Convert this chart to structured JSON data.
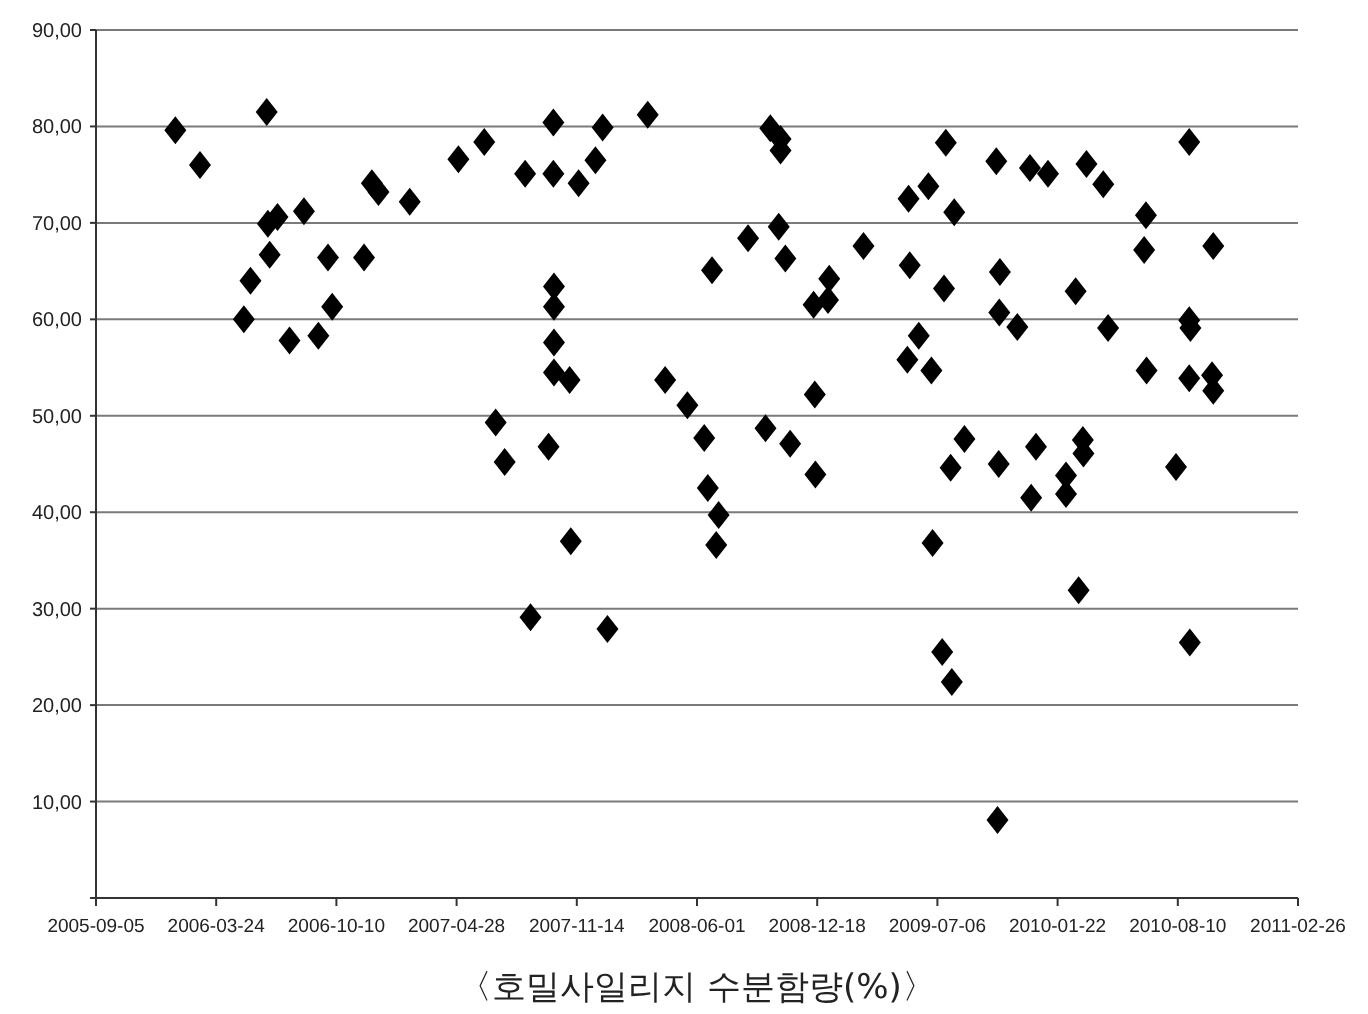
{
  "chart_data": {
    "type": "scatter",
    "xlabel": "〈호밀사일리지 수분함량(%)〉",
    "marker": "diamond",
    "grid": "y",
    "xlim": [
      "2005-09-05",
      "2011-02-26"
    ],
    "xticks": [
      "2005-09-05",
      "2006-03-24",
      "2006-10-10",
      "2007-04-28",
      "2007-11-14",
      "2008-06-01",
      "2008-12-18",
      "2009-07-06",
      "2010-01-22",
      "2010-08-10",
      "2011-02-26"
    ],
    "ylim": [
      0,
      90
    ],
    "yticks": [
      {
        "value": 0,
        "label": null
      },
      {
        "value": 10,
        "label": "10,00"
      },
      {
        "value": 20,
        "label": "20,00"
      },
      {
        "value": 30,
        "label": "30,00"
      },
      {
        "value": 40,
        "label": "40,00"
      },
      {
        "value": 50,
        "label": "50,00"
      },
      {
        "value": 60,
        "label": "60,00"
      },
      {
        "value": 70,
        "label": "70,00"
      },
      {
        "value": 80,
        "label": "80,00"
      },
      {
        "value": 90,
        "label": "90,00"
      }
    ],
    "series": [
      {
        "color": "#000000",
        "x": [
          "2006-01-15",
          "2006-02-25",
          "2006-06-16",
          "2006-06-18",
          "2006-07-04",
          "2006-08-17",
          "2006-06-21",
          "2006-05-20",
          "2006-05-09",
          "2006-07-24",
          "2006-09-10",
          "2006-10-03",
          "2006-09-26",
          "2006-11-25",
          "2006-12-08",
          "2006-12-19",
          "2007-02-09",
          "2007-05-01",
          "2007-06-13",
          "2007-08-20",
          "2007-10-06",
          "2007-10-06",
          "2007-11-17",
          "2007-12-15",
          "2007-12-27",
          "2008-03-11",
          "2008-06-26",
          "2007-10-07",
          "2007-10-07",
          "2007-10-07",
          "2007-10-07",
          "2007-11-02",
          "2008-04-09",
          "2008-05-16",
          "2008-06-13",
          "2007-07-02",
          "2007-07-17",
          "2007-09-28",
          "2008-06-19",
          "2008-07-07",
          "2008-07-03",
          "2007-11-04",
          "2007-08-29",
          "2008-01-04",
          "2008-10-01",
          "2008-10-18",
          "2008-10-18",
          "2008-08-25",
          "2008-10-15",
          "2008-10-26",
          "2009-03-05",
          "2009-01-07",
          "2008-12-12",
          "2009-01-05",
          "2008-12-14",
          "2008-09-23",
          "2008-11-03",
          "2008-12-15",
          "2009-05-19",
          "2009-06-21",
          "2009-07-20",
          "2009-08-03",
          "2009-10-12",
          "2009-05-21",
          "2009-07-17",
          "2009-10-18",
          "2009-10-17",
          "2009-11-16",
          "2009-06-05",
          "2009-05-17",
          "2009-06-26",
          "2009-08-20",
          "2009-07-28",
          "2009-10-16",
          "2009-06-28",
          "2009-07-14",
          "2009-07-30",
          "2009-10-14",
          "2009-12-07",
          "2010-01-06",
          "2010-03-11",
          "2010-04-08",
          "2010-08-29",
          "2010-06-18",
          "2010-06-15",
          "2010-10-08",
          "2010-02-21",
          "2010-04-16",
          "2010-08-29",
          "2010-08-31",
          "2010-06-19",
          "2010-08-29",
          "2010-10-06",
          "2010-10-08",
          "2009-12-17",
          "2009-12-09",
          "2010-02-05",
          "2010-02-05",
          "2010-03-05",
          "2010-03-06",
          "2010-08-07",
          "2010-02-26",
          "2010-08-30"
        ],
        "values": [
          79.6,
          76.0,
          81.5,
          69.9,
          70.6,
          71.2,
          66.7,
          64.0,
          60.0,
          57.8,
          58.3,
          61.3,
          66.4,
          66.4,
          74.1,
          73.2,
          72.2,
          76.6,
          78.4,
          75.1,
          80.4,
          75.1,
          74.1,
          76.5,
          79.9,
          81.2,
          65.1,
          63.4,
          61.3,
          57.6,
          54.5,
          53.7,
          53.7,
          51.1,
          47.7,
          49.3,
          45.2,
          46.8,
          42.5,
          39.7,
          36.6,
          37.0,
          29.1,
          27.9,
          79.8,
          78.7,
          77.5,
          68.4,
          69.6,
          66.3,
          67.6,
          64.2,
          61.5,
          62.0,
          52.2,
          48.7,
          47.1,
          43.9,
          72.5,
          73.8,
          78.3,
          71.1,
          76.4,
          65.6,
          63.2,
          64.9,
          60.7,
          59.2,
          58.3,
          55.8,
          54.7,
          47.6,
          44.6,
          45.0,
          36.8,
          25.5,
          22.4,
          8.1,
          75.7,
          75.1,
          76.1,
          74.0,
          78.4,
          70.8,
          67.2,
          67.6,
          62.9,
          59.1,
          59.9,
          59.1,
          54.7,
          53.9,
          54.2,
          52.6,
          46.8,
          41.5,
          43.8,
          41.9,
          47.5,
          46.1,
          44.7,
          31.9,
          26.5
        ]
      }
    ]
  }
}
